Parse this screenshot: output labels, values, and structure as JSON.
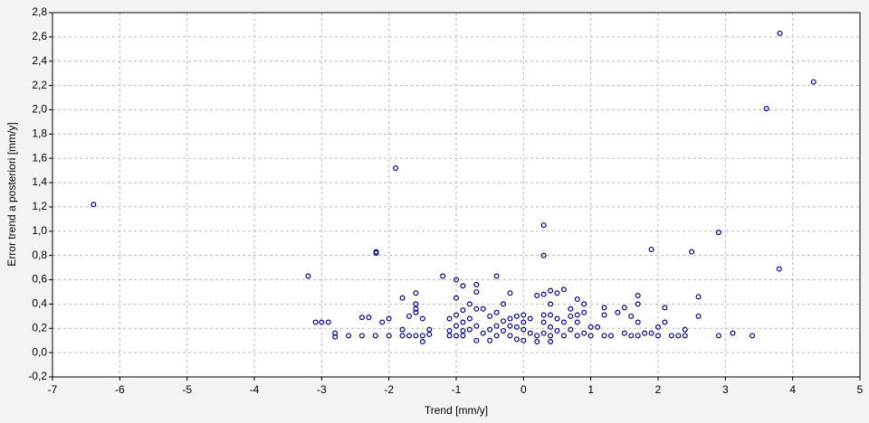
{
  "chart_data": {
    "type": "scatter",
    "x_label": "Trend [mm/y]",
    "y_label": "Error trend a posteriori [mm/y]",
    "color": "#00008b",
    "grid": true,
    "xlim": [
      -7,
      5
    ],
    "xticks": [
      -7,
      -6,
      -5,
      -4,
      -3,
      -2,
      -1,
      0,
      1,
      2,
      3,
      4,
      5
    ],
    "ylim": [
      -0.2,
      2.8
    ],
    "yticks": [
      {
        "value": -0.2,
        "label": "-0,2"
      },
      {
        "value": 0,
        "label": "0,0"
      },
      {
        "value": 0.2,
        "label": "0,2"
      },
      {
        "value": 0.4,
        "label": "0,4"
      },
      {
        "value": 0.6,
        "label": "0,6"
      },
      {
        "value": 0.8,
        "label": "0,8"
      },
      {
        "value": 1.0,
        "label": "1,0"
      },
      {
        "value": 1.2,
        "label": "1,2"
      },
      {
        "value": 1.4,
        "label": "1,4"
      },
      {
        "value": 1.6,
        "label": "1,6"
      },
      {
        "value": 1.8,
        "label": "1,8"
      },
      {
        "value": 2.0,
        "label": "2,0"
      },
      {
        "value": 2.2,
        "label": "2,2"
      },
      {
        "value": 2.4,
        "label": "2,4"
      },
      {
        "value": 2.6,
        "label": "2,6"
      },
      {
        "value": 2.8,
        "label": "2,8"
      }
    ],
    "x": [
      -6.39,
      -3.2,
      -1.9,
      -2.19,
      -2.19,
      0.3,
      0.3,
      1.9,
      2.5,
      2.9,
      3.61,
      3.81,
      4.31,
      3.8,
      2.6,
      2.6,
      3.11,
      3.4,
      2.9,
      2.1,
      2.1,
      -3.09,
      -3.0,
      -2.9,
      -2.8,
      -2.8,
      -2.6,
      -2.4,
      -2.3,
      -2.4,
      -2.2,
      -2.1,
      -2.0,
      -2.0,
      -1.8,
      -1.8,
      -1.8,
      -1.7,
      -1.7,
      -1.6,
      -1.6,
      -1.6,
      -1.6,
      -1.6,
      -1.5,
      -1.5,
      -1.5,
      -1.4,
      -1.4,
      -1.2,
      -1.1,
      -1.1,
      -1.1,
      -1.0,
      -1.0,
      -1.0,
      -1.0,
      -1.0,
      -0.9,
      -0.9,
      -0.9,
      -0.9,
      -0.9,
      -0.8,
      -0.8,
      -0.8,
      -0.7,
      -0.7,
      -0.7,
      -0.7,
      -0.7,
      -0.6,
      -0.6,
      -0.5,
      -0.5,
      -0.5,
      -0.4,
      -0.4,
      -0.4,
      -0.4,
      -0.3,
      -0.3,
      -0.3,
      -0.2,
      -0.2,
      -0.2,
      -0.2,
      -0.1,
      -0.1,
      -0.1,
      0,
      0,
      0,
      0,
      0.1,
      0.1,
      0.2,
      0.2,
      0.2,
      0.3,
      0.3,
      0.3,
      0.3,
      0.4,
      0.4,
      0.4,
      0.4,
      0.4,
      0.4,
      0.5,
      0.5,
      0.5,
      0.6,
      0.6,
      0.6,
      0.7,
      0.7,
      0.7,
      0.8,
      0.8,
      0.8,
      0.8,
      0.9,
      0.9,
      0.9,
      1.0,
      1.0,
      1.1,
      1.2,
      1.2,
      1.2,
      1.3,
      1.4,
      1.5,
      1.5,
      1.6,
      1.6,
      1.7,
      1.7,
      1.7,
      1.7,
      1.8,
      1.9,
      2.0,
      2.0,
      2.2,
      2.3,
      2.4,
      2.4
    ],
    "values": [
      1.22,
      0.63,
      1.52,
      0.83,
      0.82,
      1.05,
      0.8,
      0.85,
      0.83,
      0.99,
      2.01,
      2.63,
      2.23,
      0.69,
      0.46,
      0.3,
      0.16,
      0.14,
      0.14,
      0.37,
      0.25,
      0.25,
      0.25,
      0.25,
      0.16,
      0.13,
      0.14,
      0.29,
      0.29,
      0.14,
      0.14,
      0.25,
      0.28,
      0.14,
      0.45,
      0.19,
      0.14,
      0.3,
      0.14,
      0.49,
      0.4,
      0.36,
      0.33,
      0.14,
      0.28,
      0.14,
      0.09,
      0.19,
      0.15,
      0.63,
      0.28,
      0.18,
      0.14,
      0.6,
      0.45,
      0.31,
      0.22,
      0.14,
      0.55,
      0.35,
      0.25,
      0.18,
      0.14,
      0.4,
      0.28,
      0.19,
      0.56,
      0.5,
      0.36,
      0.22,
      0.1,
      0.36,
      0.16,
      0.3,
      0.19,
      0.1,
      0.63,
      0.33,
      0.22,
      0.14,
      0.4,
      0.26,
      0.18,
      0.49,
      0.28,
      0.22,
      0.14,
      0.3,
      0.21,
      0.11,
      0.31,
      0.25,
      0.19,
      0.1,
      0.28,
      0.16,
      0.47,
      0.14,
      0.09,
      0.48,
      0.31,
      0.25,
      0.16,
      0.51,
      0.4,
      0.31,
      0.21,
      0.14,
      0.09,
      0.49,
      0.28,
      0.18,
      0.52,
      0.25,
      0.14,
      0.36,
      0.3,
      0.19,
      0.44,
      0.31,
      0.25,
      0.14,
      0.4,
      0.33,
      0.16,
      0.21,
      0.14,
      0.21,
      0.37,
      0.31,
      0.14,
      0.14,
      0.33,
      0.37,
      0.16,
      0.3,
      0.14,
      0.47,
      0.4,
      0.25,
      0.14,
      0.16,
      0.16,
      0.21,
      0.14,
      0.14,
      0.14,
      0.19,
      0.14
    ]
  }
}
